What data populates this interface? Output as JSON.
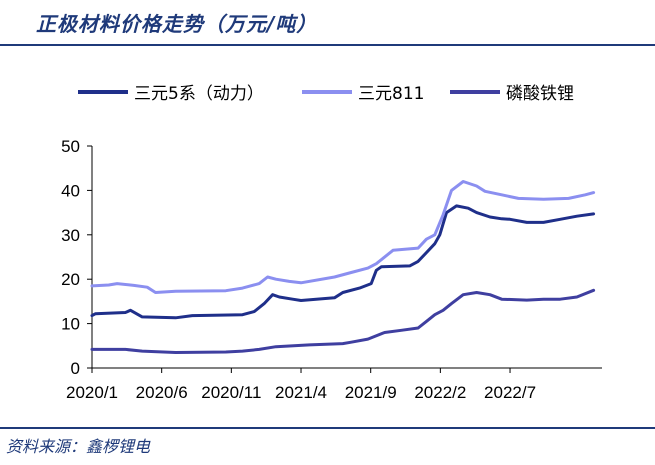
{
  "header": {
    "title": "正极材料价格走势（万元/吨）"
  },
  "footer": {
    "source": "资料来源：鑫椤锂电"
  },
  "chart_data": {
    "type": "line",
    "title": "正极材料价格走势（万元/吨）",
    "xlabel": "",
    "ylabel": "",
    "ylim": [
      0,
      50
    ],
    "yticks": [
      0,
      10,
      20,
      30,
      40,
      50
    ],
    "xlim": [
      2020.0,
      2023.05
    ],
    "xticks": [
      {
        "label": "2020/1",
        "x": 2020.0
      },
      {
        "label": "2020/6",
        "x": 2020.4167
      },
      {
        "label": "2020/11",
        "x": 2020.8333
      },
      {
        "label": "2021/4",
        "x": 2021.25
      },
      {
        "label": "2021/9",
        "x": 2021.6667
      },
      {
        "label": "2022/2",
        "x": 2022.0833
      },
      {
        "label": "2022/7",
        "x": 2022.5
      }
    ],
    "grid": false,
    "legend_position": "top",
    "series": [
      {
        "name": "三元5系（动力）",
        "color": "#1f2f8a",
        "x": [
          2020.0,
          2020.02,
          2020.2,
          2020.23,
          2020.3,
          2020.5,
          2020.6,
          2020.9,
          2020.97,
          2021.03,
          2021.08,
          2021.12,
          2021.2,
          2021.25,
          2021.45,
          2021.5,
          2021.6,
          2021.67,
          2021.7,
          2021.73,
          2021.9,
          2021.95,
          2022.0,
          2022.05,
          2022.08,
          2022.12,
          2022.18,
          2022.25,
          2022.3,
          2022.38,
          2022.45,
          2022.5,
          2022.6,
          2022.7,
          2022.8,
          2022.9,
          2023.0
        ],
        "y": [
          11.8,
          12.2,
          12.5,
          13.0,
          11.5,
          11.3,
          11.8,
          12.0,
          12.7,
          14.5,
          16.5,
          16.0,
          15.5,
          15.2,
          15.8,
          17.0,
          18.0,
          19.0,
          22.0,
          22.8,
          23.0,
          24.0,
          26.0,
          28.0,
          30.0,
          35.0,
          36.5,
          36.0,
          35.0,
          34.0,
          33.6,
          33.5,
          32.8,
          32.8,
          33.5,
          34.2,
          34.7
        ]
      },
      {
        "name": "三元811",
        "color": "#8b8ff0",
        "x": [
          2020.0,
          2020.1,
          2020.15,
          2020.25,
          2020.33,
          2020.38,
          2020.5,
          2020.8,
          2020.9,
          2021.0,
          2021.05,
          2021.1,
          2021.18,
          2021.25,
          2021.45,
          2021.55,
          2021.65,
          2021.7,
          2021.8,
          2021.95,
          2022.0,
          2022.05,
          2022.1,
          2022.15,
          2022.22,
          2022.3,
          2022.35,
          2022.45,
          2022.55,
          2022.7,
          2022.85,
          2022.95,
          2023.0
        ],
        "y": [
          18.5,
          18.7,
          19.0,
          18.6,
          18.2,
          17.0,
          17.3,
          17.4,
          18.0,
          19.0,
          20.5,
          20.0,
          19.5,
          19.2,
          20.5,
          21.5,
          22.5,
          23.5,
          26.5,
          27.0,
          29.0,
          30.0,
          34.5,
          40.0,
          42.0,
          41.0,
          39.8,
          39.0,
          38.2,
          38.0,
          38.2,
          39.0,
          39.5
        ]
      },
      {
        "name": "磷酸铁锂",
        "color": "#3f3fa0",
        "x": [
          2020.0,
          2020.2,
          2020.3,
          2020.5,
          2020.8,
          2020.9,
          2021.0,
          2021.1,
          2021.3,
          2021.5,
          2021.55,
          2021.65,
          2021.75,
          2021.85,
          2021.95,
          2022.0,
          2022.05,
          2022.1,
          2022.15,
          2022.22,
          2022.3,
          2022.38,
          2022.45,
          2022.6,
          2022.7,
          2022.8,
          2022.9,
          2023.0
        ],
        "y": [
          4.2,
          4.2,
          3.8,
          3.5,
          3.6,
          3.8,
          4.2,
          4.8,
          5.2,
          5.5,
          5.8,
          6.5,
          8.0,
          8.5,
          9.0,
          10.5,
          12.0,
          13.0,
          14.5,
          16.5,
          17.0,
          16.5,
          15.5,
          15.3,
          15.5,
          15.5,
          16.0,
          17.5
        ]
      }
    ]
  }
}
